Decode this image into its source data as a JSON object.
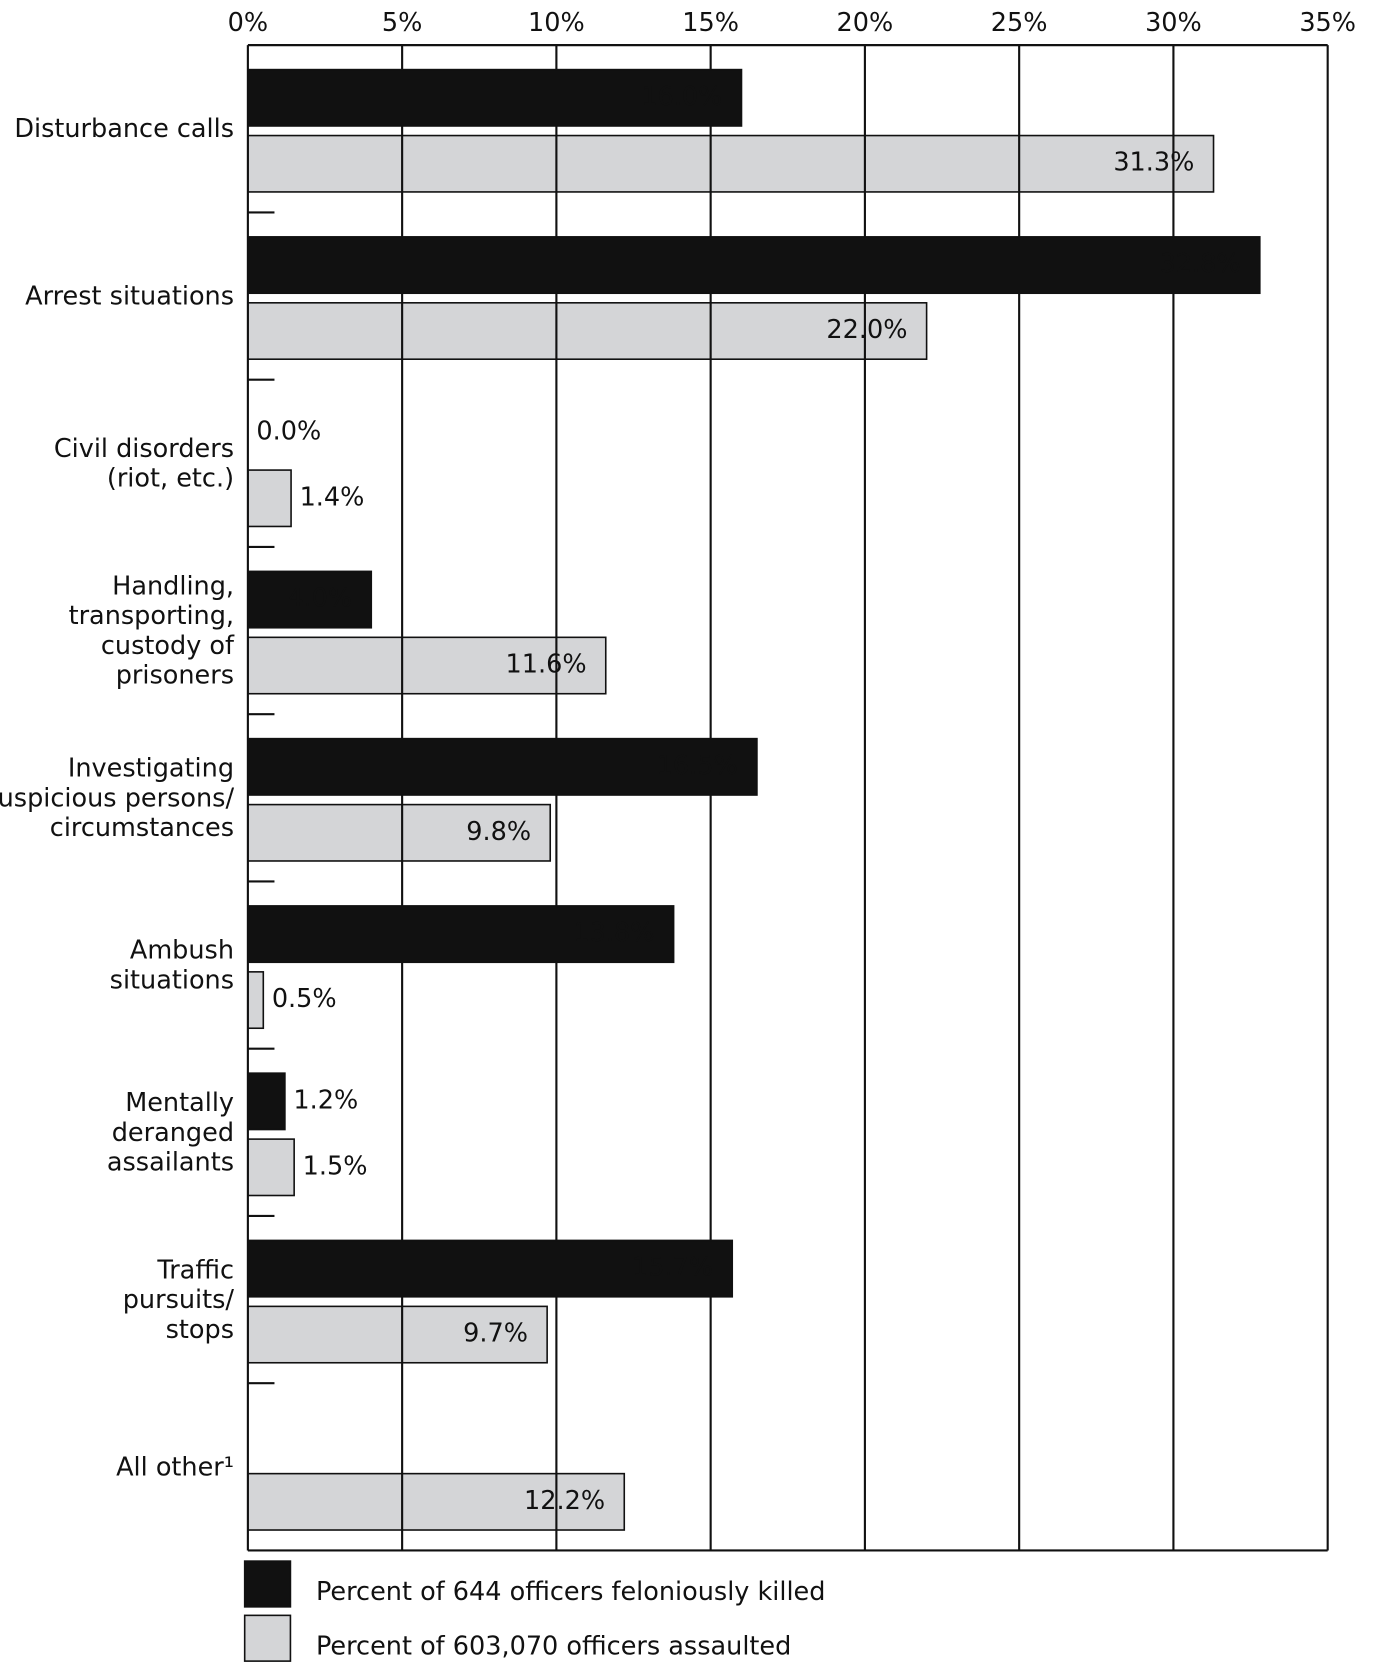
{
  "chart_data": {
    "type": "hbar",
    "categories": [
      "Disturbance calls",
      "Arrest situations",
      "Civil disorders\n(riot, etc.)",
      "Handling,\ntransporting,\ncustody of\nprisoners",
      "Investigating\nsuspicious persons/\ncircumstances",
      "Ambush\nsituations",
      "Mentally\nderanged\nassailants",
      "Traffic\npursuits/\nstops",
      "All other¹"
    ],
    "series": [
      {
        "name": "Percent of 644 officers feloniously killed",
        "color": "#111111",
        "values": [
          16.0,
          32.8,
          0.0,
          4.0,
          16.5,
          13.8,
          1.2,
          15.7,
          null
        ],
        "value_labels": [
          "16.0%",
          "32.8%",
          "0.0%",
          "4.0%",
          "16.5%",
          "13.8%",
          "1.2%",
          "15.7%",
          null
        ]
      },
      {
        "name": "Percent of 603,070 officers assaulted",
        "color": "#d4d5d7",
        "values": [
          31.3,
          22.0,
          1.4,
          11.6,
          9.8,
          0.5,
          1.5,
          9.7,
          12.2
        ],
        "value_labels": [
          "31.3%",
          "22.0%",
          "1.4%",
          "11.6%",
          "9.8%",
          "0.5%",
          "1.5%",
          "9.7%",
          "12.2%"
        ]
      }
    ],
    "xlim": [
      0,
      35
    ],
    "xticks": [
      {
        "value": 0,
        "label": "0%"
      },
      {
        "value": 5,
        "label": "5%"
      },
      {
        "value": 10,
        "label": "10%"
      },
      {
        "value": 15,
        "label": "15%"
      },
      {
        "value": 20,
        "label": "20%"
      },
      {
        "value": 25,
        "label": "25%"
      },
      {
        "value": 30,
        "label": "30%"
      },
      {
        "value": 35,
        "label": "35%"
      }
    ],
    "grid": true,
    "legend": "bottom"
  }
}
